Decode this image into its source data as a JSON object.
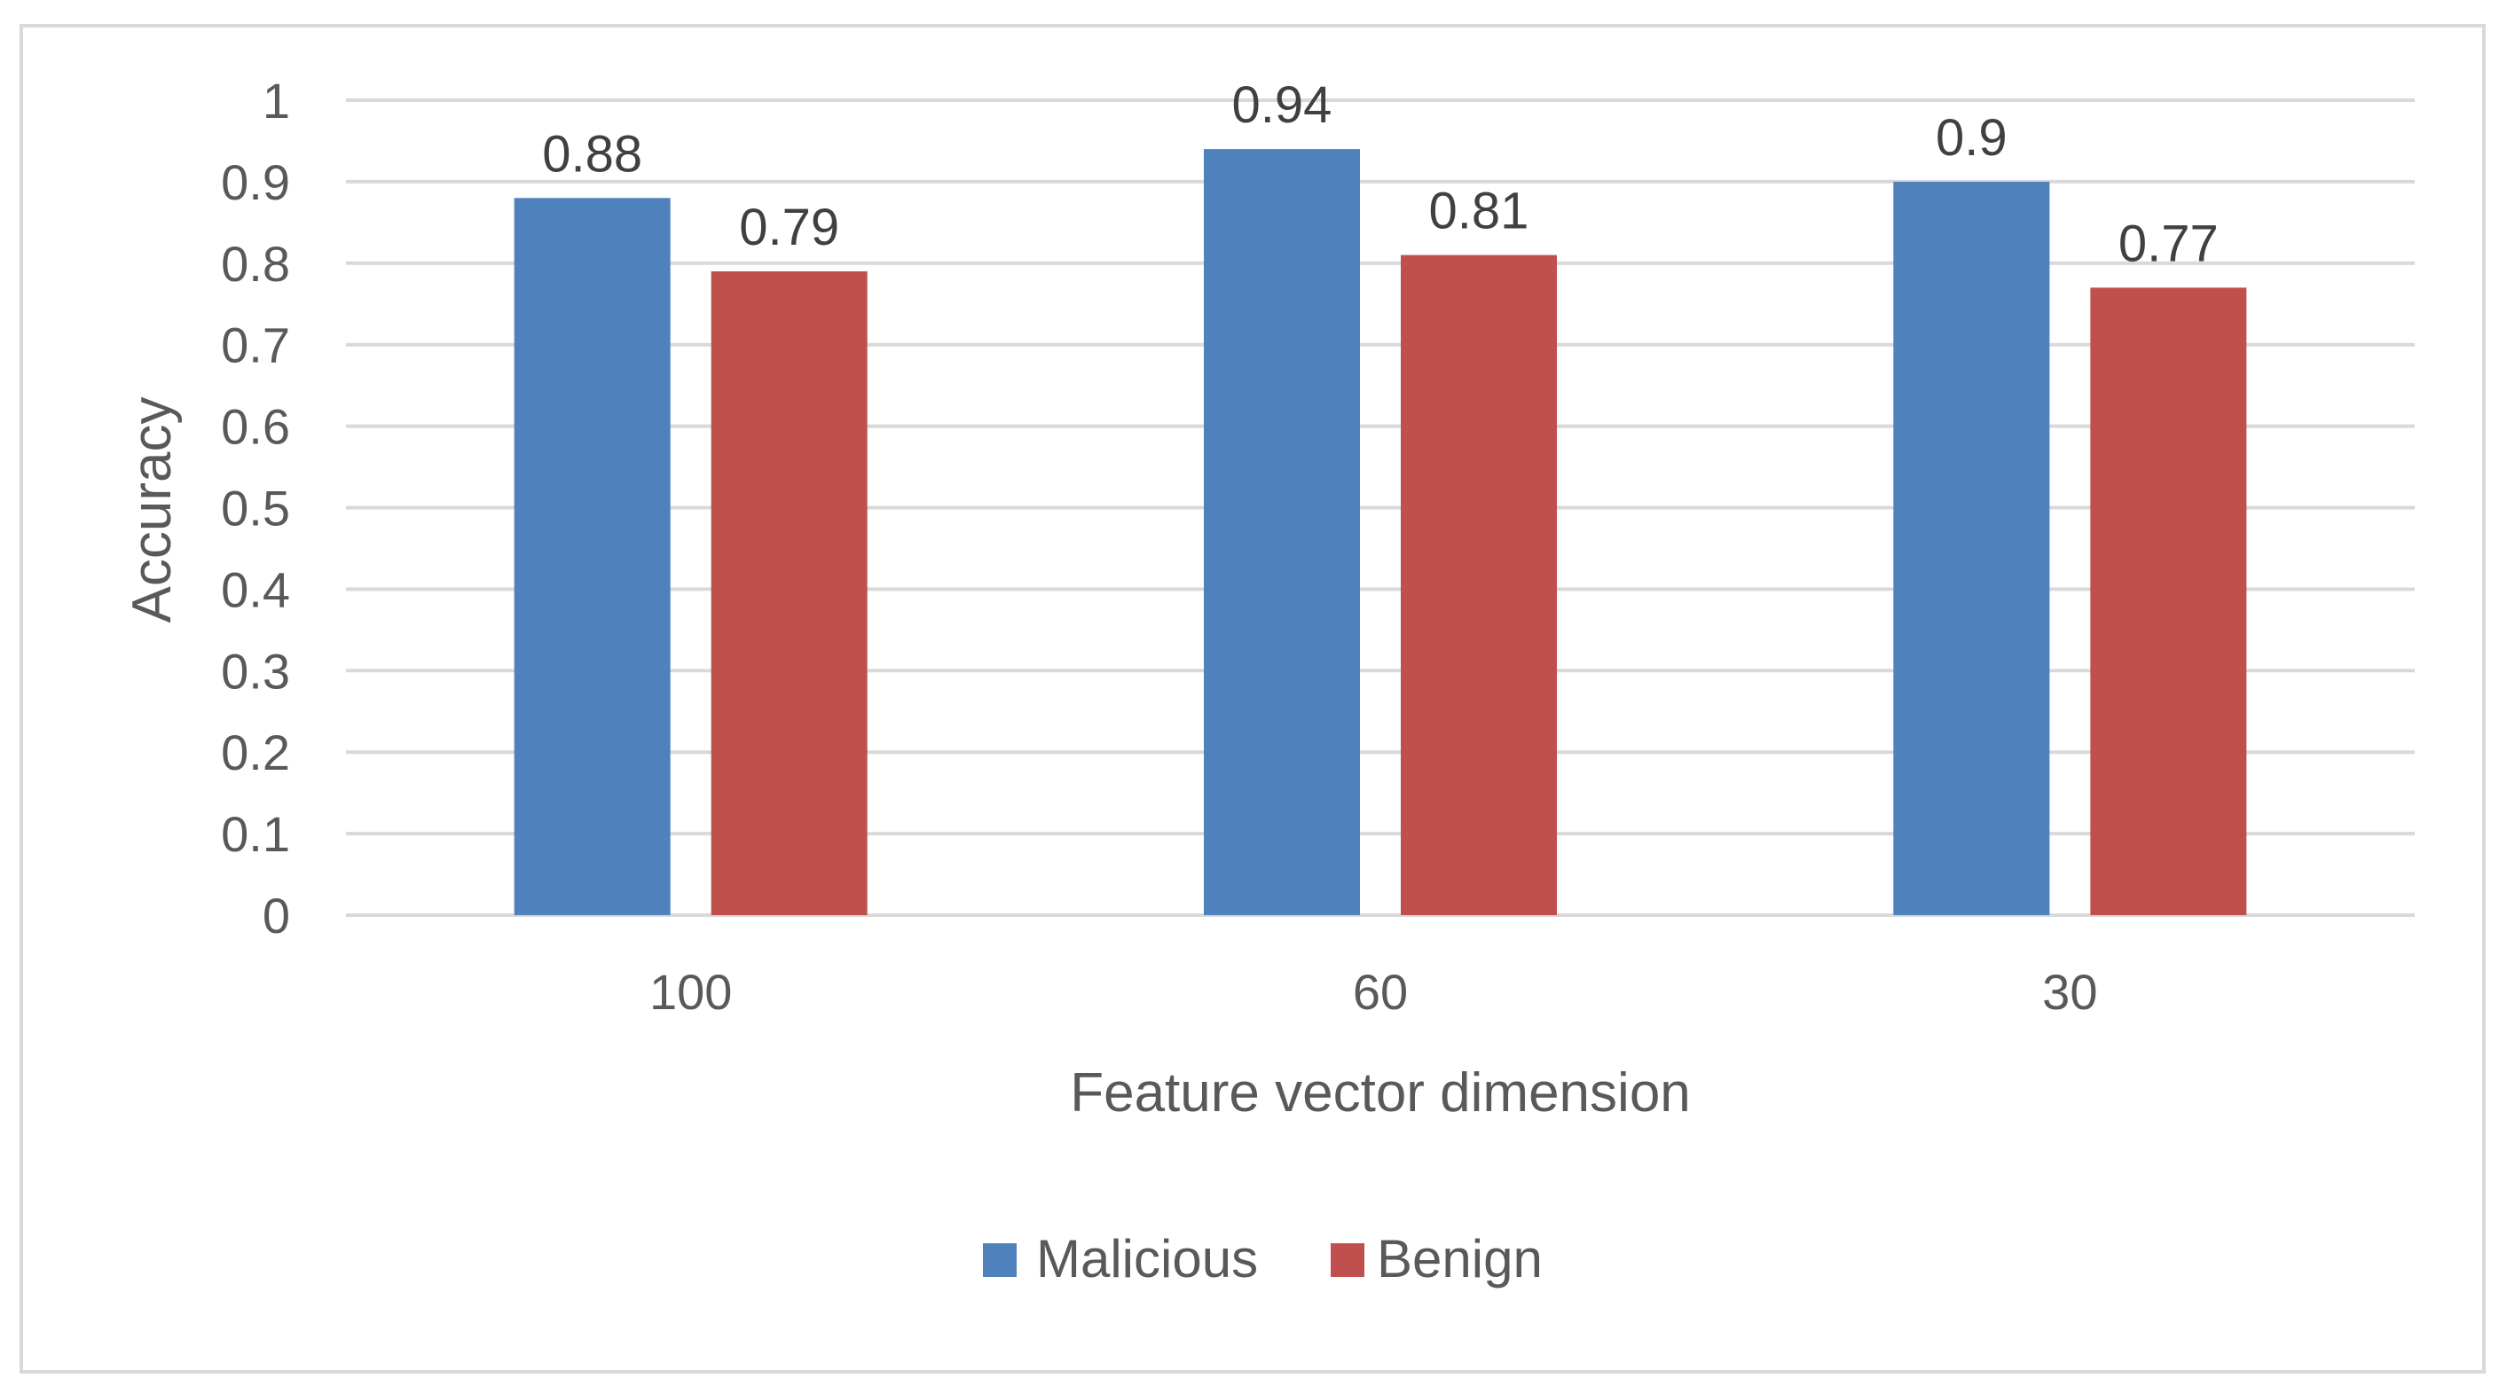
{
  "chart_data": {
    "type": "bar",
    "title": "",
    "xlabel": "Feature vector dimension",
    "ylabel": "Accuracy",
    "categories": [
      "100",
      "60",
      "30"
    ],
    "series": [
      {
        "name": "Malicious",
        "values": [
          0.88,
          0.94,
          0.9
        ],
        "labels": [
          "0.88",
          "0.94",
          "0.9"
        ],
        "color": "#4f81bd"
      },
      {
        "name": "Benign",
        "values": [
          0.79,
          0.81,
          0.77
        ],
        "labels": [
          "0.79",
          "0.81",
          "0.77"
        ],
        "color": "#c0504d"
      }
    ],
    "ylim": [
      0,
      1
    ],
    "yticks": [
      "0",
      "0.1",
      "0.2",
      "0.3",
      "0.4",
      "0.5",
      "0.6",
      "0.7",
      "0.8",
      "0.9",
      "1"
    ],
    "grid": true,
    "legend": "bottom",
    "gridColor": "#d9d9d9"
  }
}
